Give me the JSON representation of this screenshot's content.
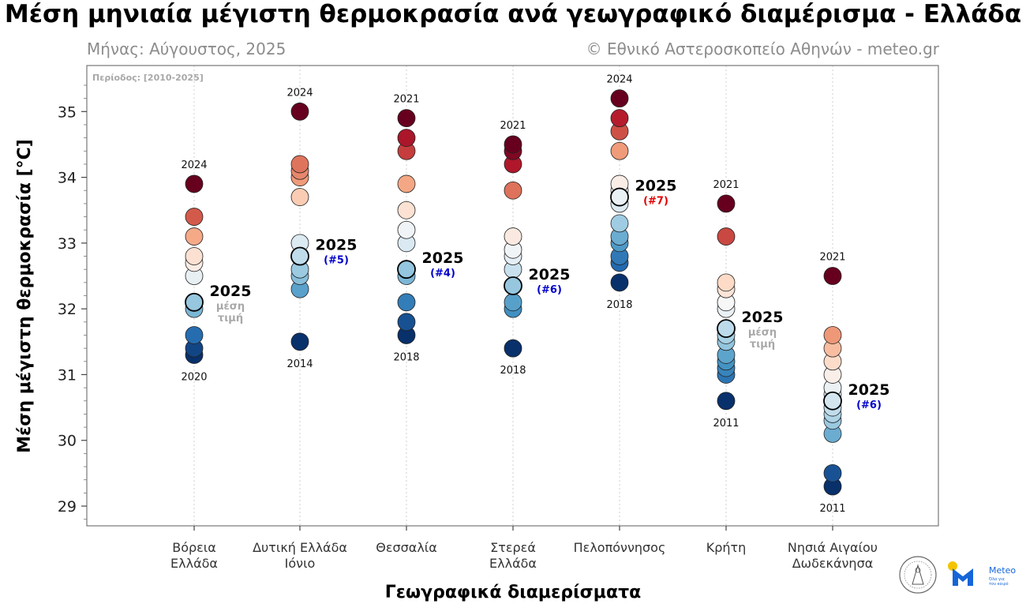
{
  "title": "Μέση μηνιαία μέγιστη θερμοκρασία ανά γεωγραφικό διαμέρισμα - Ελλάδα",
  "subtitle_left": "Μήνας: Αύγουστος, 2025",
  "subtitle_right": "© Εθνικό Αστεροσκοπείο Αθηνών - meteo.gr",
  "period_label": "Περίοδος: [2010-2025]",
  "logo": {
    "name": "Meteo",
    "tagline_1": "Όλα για",
    "tagline_2": "τον καιρό"
  },
  "chart_data": {
    "type": "scatter",
    "title": "Μέση μηνιαία μέγιστη θερμοκρασία ανά γεωγραφικό διαμέρισμα - Ελλάδα",
    "xlabel": "Γεωγραφικά διαμερίσματα",
    "ylabel": "Μέση μέγιστη θερμοκρασία [°C]",
    "ylim": [
      28.7,
      35.7
    ],
    "yticks": [
      29,
      30,
      31,
      32,
      33,
      34,
      35
    ],
    "grid": "vertical dotted",
    "annotation_label": "2025",
    "avg_label_1": "μέση",
    "avg_label_2": "τιμή",
    "color_scale": [
      "#08306b",
      "#2166ac",
      "#4393c3",
      "#92c5de",
      "#d1e5f0",
      "#f7f7f7",
      "#fddbc7",
      "#f4a582",
      "#d6604d",
      "#b2182b",
      "#67001f"
    ],
    "regions": [
      {
        "name_1": "Βόρεια",
        "name_2": "Ελλάδα",
        "values": [
          31.3,
          31.4,
          31.6,
          32.0,
          32.1,
          32.5,
          32.7,
          32.8,
          33.1,
          33.4,
          33.9
        ],
        "value_2025": 32.1,
        "max_year": "2024",
        "min_year": "2020",
        "rank": "",
        "avg": true,
        "rank_color": ""
      },
      {
        "name_1": "Δυτική Ελλάδα",
        "name_2": "Ιόνιο",
        "values": [
          31.5,
          32.3,
          32.5,
          32.6,
          32.8,
          33.0,
          33.7,
          34.0,
          34.1,
          34.2,
          35.0
        ],
        "value_2025": 32.8,
        "max_year": "2024",
        "min_year": "2014",
        "rank": "(#5)",
        "avg": false,
        "rank_color": "#0000cc"
      },
      {
        "name_1": "Θεσσαλία",
        "name_2": "",
        "values": [
          31.6,
          31.8,
          32.1,
          32.5,
          32.6,
          33.0,
          33.2,
          33.5,
          33.9,
          34.4,
          34.6,
          34.9
        ],
        "value_2025": 32.6,
        "max_year": "2021",
        "min_year": "2018",
        "rank": "(#4)",
        "avg": false,
        "rank_color": "#0000cc"
      },
      {
        "name_1": "Στερεά",
        "name_2": "Ελλάδα",
        "values": [
          31.4,
          32.0,
          32.1,
          32.35,
          32.6,
          32.8,
          32.9,
          33.1,
          33.8,
          34.2,
          34.4,
          34.5
        ],
        "value_2025": 32.35,
        "max_year": "2021",
        "min_year": "2018",
        "rank": "(#6)",
        "avg": false,
        "rank_color": "#0000cc"
      },
      {
        "name_1": "Πελοπόννησος",
        "name_2": "",
        "values": [
          32.4,
          32.7,
          32.8,
          33.0,
          33.1,
          33.3,
          33.6,
          33.7,
          33.8,
          33.9,
          34.4,
          34.7,
          34.9,
          35.2
        ],
        "value_2025": 33.7,
        "max_year": "2024",
        "min_year": "2018",
        "rank": "(#7)",
        "avg": false,
        "rank_color": "#e00000"
      },
      {
        "name_1": "Κρήτη",
        "name_2": "",
        "values": [
          30.6,
          31.0,
          31.1,
          31.2,
          31.3,
          31.5,
          31.6,
          31.7,
          32.0,
          32.1,
          32.3,
          32.4,
          33.1,
          33.6
        ],
        "value_2025": 31.7,
        "max_year": "2021",
        "min_year": "2011",
        "rank": "",
        "avg": true,
        "rank_color": ""
      },
      {
        "name_1": "Νησιά Αιγαίου",
        "name_2": "Δωδεκάνησα",
        "values": [
          29.3,
          29.5,
          30.1,
          30.3,
          30.4,
          30.5,
          30.6,
          30.7,
          30.8,
          31.0,
          31.2,
          31.4,
          31.6,
          32.5
        ],
        "value_2025": 30.6,
        "max_year": "2021",
        "min_year": "2011",
        "rank": "(#6)",
        "avg": false,
        "rank_color": "#0000cc"
      }
    ]
  }
}
